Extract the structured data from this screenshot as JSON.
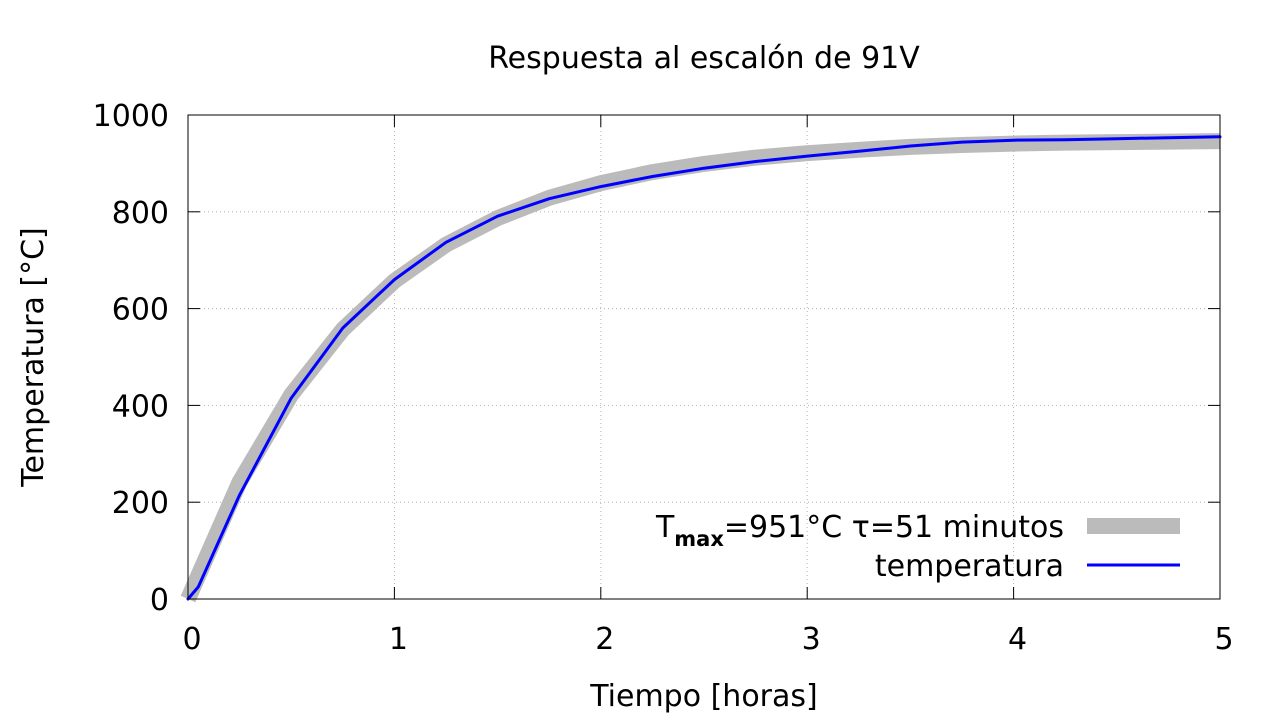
{
  "chart_data": {
    "type": "line",
    "title": "Respuesta al escalón de 91V",
    "xlabel": "Tiempo [horas]",
    "ylabel": "Temperatura [°C]",
    "xlim": [
      0,
      5
    ],
    "ylim": [
      0,
      1000
    ],
    "xticks": [
      "0",
      "1",
      "2",
      "3",
      "4",
      "5"
    ],
    "yticks": [
      "0",
      "200",
      "400",
      "600",
      "800",
      "1000"
    ],
    "grid": true,
    "legend_position": "bottom-right",
    "series": [
      {
        "name_parts": {
          "base": "T",
          "sub": "max",
          "rest": "=951°C τ=51 minutos"
        },
        "color": "#bbbbbb",
        "style": "thick-band",
        "x": [
          0,
          0.25,
          0.5,
          0.75,
          1.0,
          1.25,
          1.5,
          1.75,
          2.0,
          2.25,
          2.5,
          2.75,
          3.0,
          3.25,
          3.5,
          3.75,
          4.0,
          4.25,
          4.5,
          4.75,
          5.0
        ],
        "y": [
          0,
          242,
          422,
          557,
          657,
          732,
          787,
          829,
          859,
          882,
          899,
          912,
          921,
          928,
          934,
          938,
          941,
          943,
          944,
          945,
          946
        ]
      },
      {
        "name": "temperatura",
        "color": "#0000ff",
        "style": "line",
        "x": [
          0,
          0.05,
          0.25,
          0.5,
          0.75,
          1.0,
          1.25,
          1.5,
          1.75,
          2.0,
          2.25,
          2.5,
          2.75,
          3.0,
          3.25,
          3.5,
          3.75,
          4.0,
          4.25,
          4.5,
          4.75,
          5.0
        ],
        "y": [
          0,
          25,
          215,
          415,
          560,
          660,
          737,
          791,
          827,
          852,
          873,
          890,
          904,
          915,
          925,
          936,
          944,
          948,
          949,
          951,
          953,
          955
        ]
      }
    ]
  }
}
